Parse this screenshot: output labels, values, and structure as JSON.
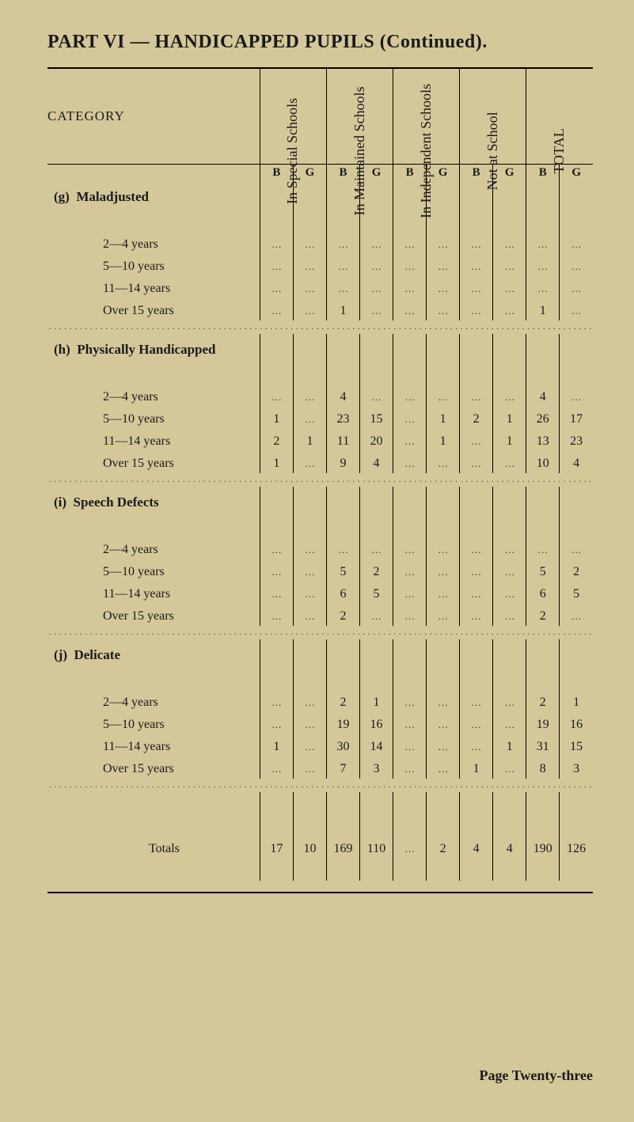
{
  "title": "PART VI — HANDICAPPED PUPILS (Continued).",
  "columns": {
    "category_label": "CATEGORY",
    "groups": [
      "In\nSpecial\nSchools",
      "In\nMaintained\nSchools",
      "In\nIndependent\nSchools",
      "Not at\nSchool",
      "TOTAL"
    ],
    "sub": [
      "B",
      "G"
    ]
  },
  "categories": [
    {
      "tag": "(g)",
      "name": "Maladjusted",
      "rows": [
        {
          "label": "2—4 years",
          "cells": [
            "…",
            "…",
            "…",
            "…",
            "…",
            "…",
            "…",
            "…",
            "…",
            "…"
          ]
        },
        {
          "label": "5—10 years",
          "cells": [
            "…",
            "…",
            "…",
            "…",
            "…",
            "…",
            "…",
            "…",
            "…",
            "…"
          ]
        },
        {
          "label": "11—14 years",
          "cells": [
            "…",
            "…",
            "…",
            "…",
            "…",
            "…",
            "…",
            "…",
            "…",
            "…"
          ]
        },
        {
          "label": "Over 15 years",
          "cells": [
            "…",
            "…",
            "1",
            "…",
            "…",
            "…",
            "…",
            "…",
            "1",
            "…"
          ]
        }
      ]
    },
    {
      "tag": "(h)",
      "name": "Physically Handicapped",
      "rows": [
        {
          "label": "2—4 years",
          "cells": [
            "…",
            "…",
            "4",
            "…",
            "…",
            "…",
            "…",
            "…",
            "4",
            "…"
          ]
        },
        {
          "label": "5—10 years",
          "cells": [
            "1",
            "…",
            "23",
            "15",
            "…",
            "1",
            "2",
            "1",
            "26",
            "17"
          ]
        },
        {
          "label": "11—14 years",
          "cells": [
            "2",
            "1",
            "11",
            "20",
            "…",
            "1",
            "…",
            "1",
            "13",
            "23"
          ]
        },
        {
          "label": "Over 15 years",
          "cells": [
            "1",
            "…",
            "9",
            "4",
            "…",
            "…",
            "…",
            "…",
            "10",
            "4"
          ]
        }
      ]
    },
    {
      "tag": "(i)",
      "name": "Speech Defects",
      "rows": [
        {
          "label": "2—4 years",
          "cells": [
            "…",
            "…",
            "…",
            "…",
            "…",
            "…",
            "…",
            "…",
            "…",
            "…"
          ]
        },
        {
          "label": "5—10 years",
          "cells": [
            "…",
            "…",
            "5",
            "2",
            "…",
            "…",
            "…",
            "…",
            "5",
            "2"
          ]
        },
        {
          "label": "11—14 years",
          "cells": [
            "…",
            "…",
            "6",
            "5",
            "…",
            "…",
            "…",
            "…",
            "6",
            "5"
          ]
        },
        {
          "label": "Over 15 years",
          "cells": [
            "…",
            "…",
            "2",
            "…",
            "…",
            "…",
            "…",
            "…",
            "2",
            "…"
          ]
        }
      ]
    },
    {
      "tag": "(j)",
      "name": "Delicate",
      "rows": [
        {
          "label": "2—4 years",
          "cells": [
            "…",
            "…",
            "2",
            "1",
            "…",
            "…",
            "…",
            "…",
            "2",
            "1"
          ]
        },
        {
          "label": "5—10 years",
          "cells": [
            "…",
            "…",
            "19",
            "16",
            "…",
            "…",
            "…",
            "…",
            "19",
            "16"
          ]
        },
        {
          "label": "11—14 years",
          "cells": [
            "1",
            "…",
            "30",
            "14",
            "…",
            "…",
            "…",
            "1",
            "31",
            "15"
          ]
        },
        {
          "label": "Over 15 years",
          "cells": [
            "…",
            "…",
            "7",
            "3",
            "…",
            "…",
            "1",
            "…",
            "8",
            "3"
          ]
        }
      ]
    }
  ],
  "totals": {
    "label": "Totals",
    "cells": [
      "17",
      "10",
      "169",
      "110",
      "…",
      "2",
      "4",
      "4",
      "190",
      "126"
    ]
  },
  "footer": "Page Twenty-three",
  "layout": {
    "label_col_w": 268,
    "num_col_w": 42,
    "background": "#d4c89a",
    "ink": "#1a1a1a"
  }
}
